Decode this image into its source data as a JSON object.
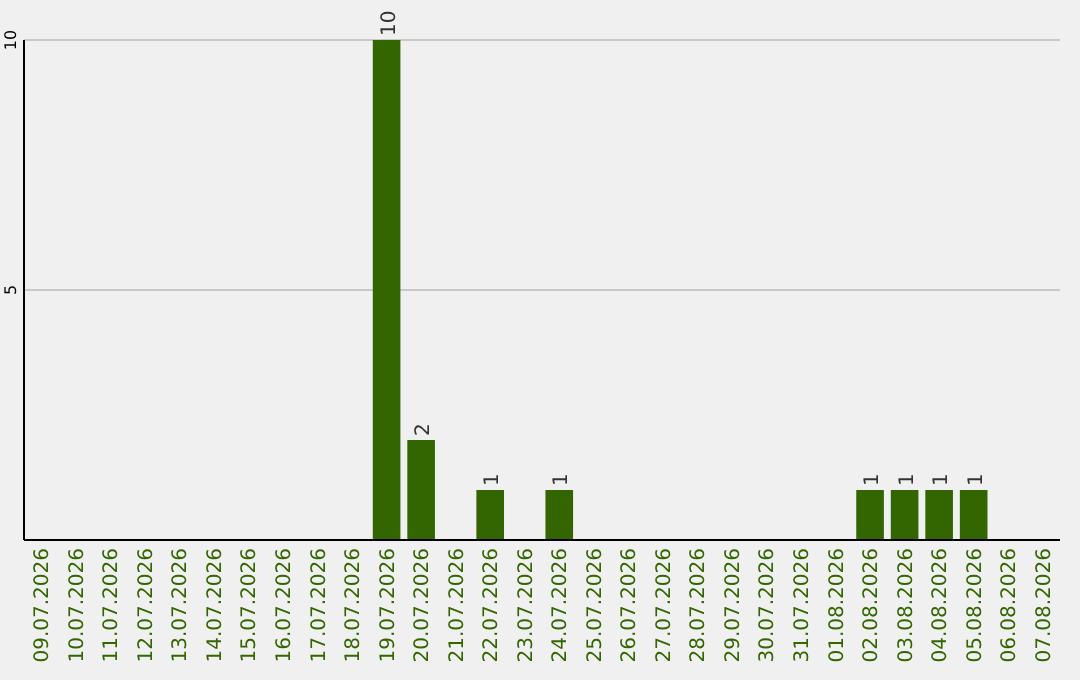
{
  "chart_data": {
    "type": "bar",
    "categories": [
      "09.07.2026",
      "10.07.2026",
      "11.07.2026",
      "12.07.2026",
      "13.07.2026",
      "14.07.2026",
      "15.07.2026",
      "16.07.2026",
      "17.07.2026",
      "18.07.2026",
      "19.07.2026",
      "20.07.2026",
      "21.07.2026",
      "22.07.2026",
      "23.07.2026",
      "24.07.2026",
      "25.07.2026",
      "26.07.2026",
      "27.07.2026",
      "28.07.2026",
      "29.07.2026",
      "30.07.2026",
      "31.07.2026",
      "01.08.2026",
      "02.08.2026",
      "03.08.2026",
      "04.08.2026",
      "05.08.2026",
      "06.08.2026",
      "07.08.2026"
    ],
    "values": [
      0,
      0,
      0,
      0,
      0,
      0,
      0,
      0,
      0,
      0,
      10,
      2,
      0,
      1,
      0,
      1,
      0,
      0,
      0,
      0,
      0,
      0,
      0,
      0,
      1,
      1,
      1,
      1,
      0,
      0
    ],
    "value_labels": [
      null,
      null,
      null,
      null,
      null,
      null,
      null,
      null,
      null,
      null,
      "10",
      "2",
      null,
      "1",
      null,
      "1",
      null,
      null,
      null,
      null,
      null,
      null,
      null,
      null,
      "1",
      "1",
      "1",
      "1",
      null,
      null
    ],
    "color": "#336600",
    "ylim": [
      0,
      10
    ],
    "yticks": [
      5,
      10
    ],
    "grid": "y"
  }
}
